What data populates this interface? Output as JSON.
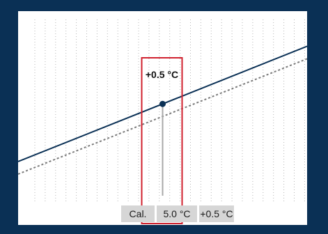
{
  "chart_data": {
    "type": "line",
    "title": "",
    "xlabel": "",
    "ylabel": "",
    "grid": true,
    "series": [
      {
        "name": "",
        "style": "solid",
        "color": "#0a3055",
        "x": [
          0,
          10
        ],
        "y": [
          0,
          4.6
        ]
      },
      {
        "name": "",
        "style": "dotted",
        "color": "#7a7a7a",
        "x": [
          0,
          10
        ],
        "y": [
          -0.5,
          4.1
        ]
      }
    ],
    "calibration": {
      "axis_label": "Cal.",
      "value_label": "5.0 °C",
      "offset_label": "+0.5 °C",
      "annotation": "+0.5 °C",
      "x": 5.0,
      "offset": 0.5
    },
    "xlim": [
      0,
      10
    ],
    "ylim": [
      -1.5,
      6
    ],
    "colors": {
      "highlight": "#d0202e",
      "marker": "#0a3055"
    }
  }
}
